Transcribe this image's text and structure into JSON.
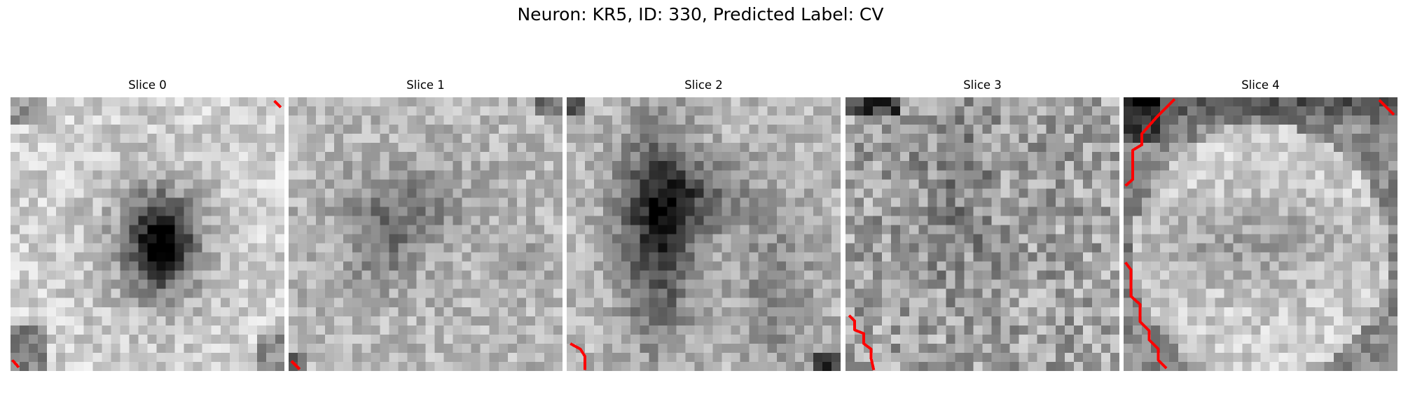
{
  "figure": {
    "title": "Neuron: KR5, ID: 330, Predicted Label: CV",
    "slices": [
      {
        "title": "Slice 0",
        "pattern": "dark-center-blob",
        "contour_corners": [
          "bottom-left",
          "top-right"
        ]
      },
      {
        "title": "Slice 1",
        "pattern": "diffuse-dark-upper-center",
        "contour_corners": [
          "bottom-left"
        ]
      },
      {
        "title": "Slice 2",
        "pattern": "dark-diagonal-band",
        "contour_corners": [
          "bottom-left"
        ]
      },
      {
        "title": "Slice 3",
        "pattern": "uniform-noise",
        "contour_corners": [
          "bottom-left"
        ]
      },
      {
        "title": "Slice 4",
        "pattern": "dark-top-band-bright-disk",
        "contour_corners": [
          "top-left",
          "left-side",
          "top-right"
        ]
      }
    ],
    "colors": {
      "colormap": "grayscale",
      "contour": "#ff0000"
    }
  }
}
